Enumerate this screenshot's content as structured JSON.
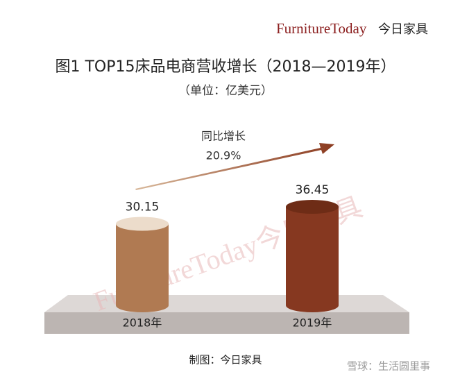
{
  "brand": {
    "name": "FurnitureToday",
    "name_cn": "今日家具"
  },
  "chart_data": {
    "type": "bar",
    "title": "图1  TOP15床品电商营收增长（2018—2019年）",
    "subtitle": "（单位：亿美元）",
    "categories": [
      "2018年",
      "2019年"
    ],
    "values": [
      30.15,
      36.45
    ],
    "colors": [
      "#b07a52",
      "#863820"
    ],
    "top_colors": [
      "#ecdccb",
      "#6e2c16"
    ],
    "annotation": {
      "label": "同比增长",
      "value_label": "20.9%"
    }
  },
  "background_watermark": "FurnitureToday今日家具",
  "footer": "制图：今日家具",
  "watermark": "雪球：生活圆里事"
}
